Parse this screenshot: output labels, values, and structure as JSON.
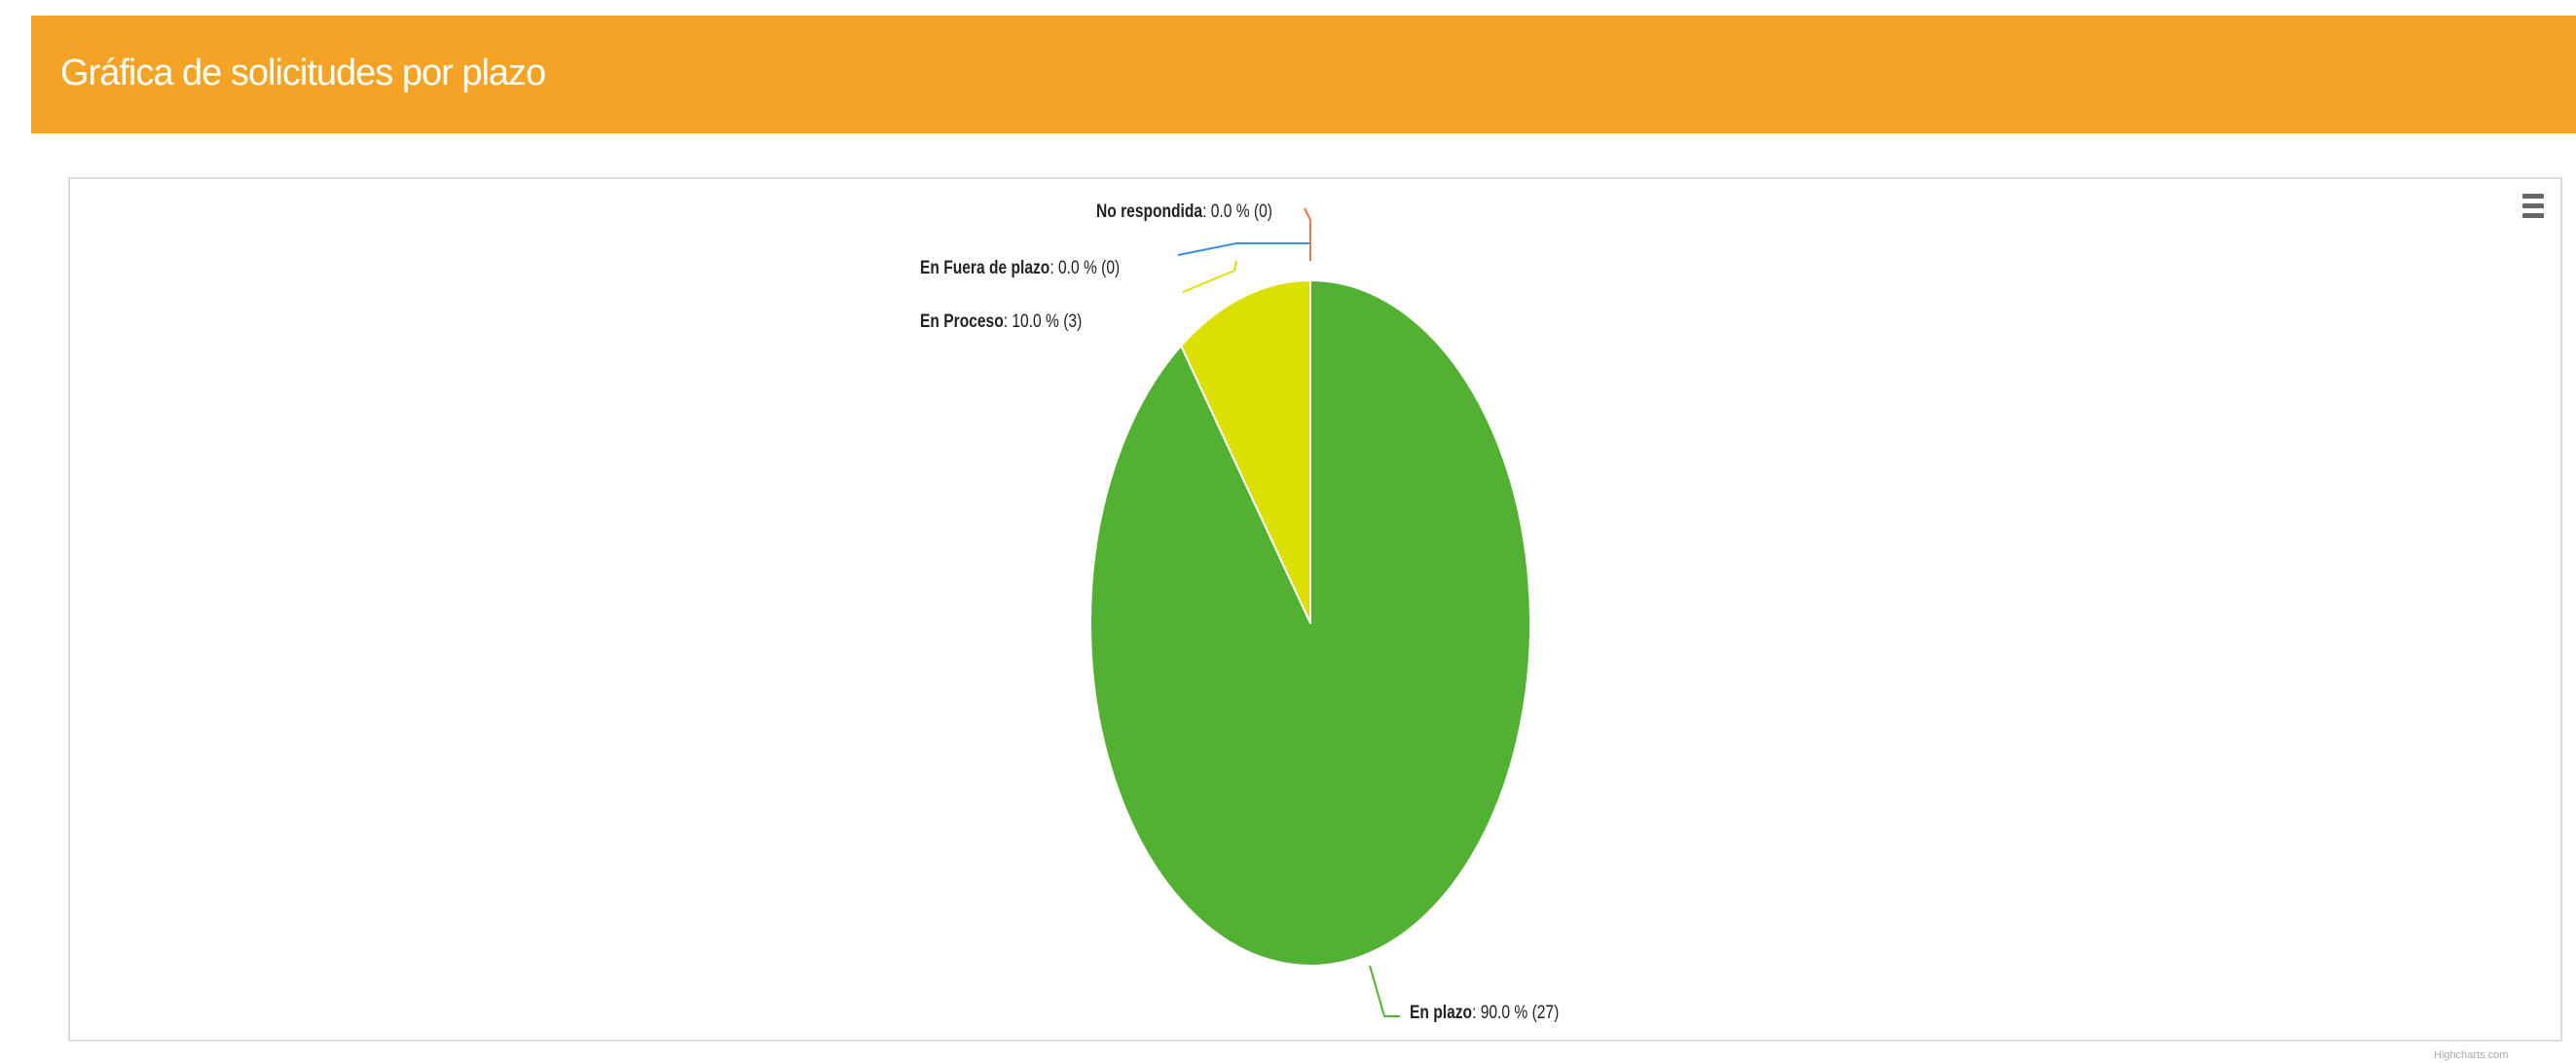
{
  "panel": {
    "title": "Gráfica de solicitudes por plazo"
  },
  "toolbar": {
    "menu_icon": "hamburger-menu-icon"
  },
  "credits": "Highcharts.com",
  "colors": {
    "header": "#f5a325",
    "frame_border": "#dcdcdc"
  },
  "chart_data": {
    "type": "pie",
    "title": "",
    "slices": [
      {
        "name": "En plazo",
        "percent": "90.0 %",
        "count": "(27)",
        "value": 27,
        "color": "#52b033",
        "connector": "#52b033"
      },
      {
        "name": "En Proceso",
        "percent": "10.0 %",
        "count": "(3)",
        "value": 3,
        "color": "#dce000",
        "connector": "#dce000"
      },
      {
        "name": "En Fuera de plazo",
        "percent": "0.0 %",
        "count": "(0)",
        "value": 0,
        "color": "#3b8fd9",
        "connector": "#3b8fd9"
      },
      {
        "name": "No respondida",
        "percent": "0.0 %",
        "count": "(0)",
        "value": 0,
        "color": "#e8754a",
        "connector": "#e8754a"
      }
    ]
  }
}
